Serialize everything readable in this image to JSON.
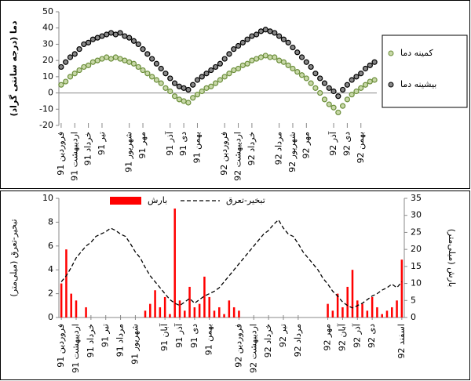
{
  "chart_data": [
    {
      "type": "scatter",
      "y_label": "دما (درجه سانتی گراد)",
      "legend": "right",
      "ylim": [
        -20,
        50
      ],
      "yticks": [
        -20,
        -10,
        0,
        10,
        20,
        30,
        40,
        50
      ],
      "categories": [
        "فروردین 91",
        null,
        null,
        "اردیبهشت 91",
        null,
        null,
        "خرداد 91",
        null,
        null,
        "تیر 91",
        null,
        null,
        null,
        null,
        null,
        "شهریور 91",
        null,
        null,
        "مهر 91",
        null,
        null,
        null,
        null,
        null,
        "آذر 91",
        null,
        null,
        "دی 91",
        null,
        null,
        "بهمن 91",
        null,
        null,
        null,
        null,
        null,
        "فروردین 92",
        null,
        null,
        "اردیبهشت 92",
        null,
        null,
        "خرداد 92",
        null,
        null,
        null,
        null,
        null,
        "مرداد 92",
        null,
        null,
        "شهریور 92",
        null,
        null,
        "مهر 92",
        null,
        null,
        null,
        null,
        null,
        "آذر 92",
        null,
        null,
        "دی 92",
        null,
        null,
        "بهمن 92",
        null,
        null,
        null
      ],
      "series": [
        {
          "name": "کمینه دما",
          "color": "#6b8e3a",
          "values": [
            5,
            7,
            10,
            12,
            14,
            16,
            17,
            19,
            20,
            21,
            22,
            21,
            22,
            21,
            20,
            19,
            18,
            16,
            14,
            12,
            10,
            8,
            6,
            3,
            1,
            -2,
            -4,
            -5,
            -6,
            -3,
            -1,
            1,
            3,
            4,
            6,
            8,
            10,
            12,
            14,
            15,
            17,
            18,
            20,
            21,
            22,
            23,
            22,
            22,
            20,
            19,
            17,
            15,
            13,
            11,
            9,
            6,
            3,
            0,
            -4,
            -7,
            -9,
            -12,
            -8,
            -4,
            -1,
            1,
            3,
            5,
            7,
            8
          ]
        },
        {
          "name": "بیشینه دما",
          "color": "#000000",
          "values": [
            16,
            19,
            22,
            24,
            27,
            30,
            31,
            33,
            34,
            35,
            36,
            37,
            36,
            37,
            35,
            34,
            32,
            30,
            27,
            24,
            21,
            18,
            15,
            12,
            9,
            6,
            4,
            3,
            2,
            5,
            8,
            10,
            12,
            14,
            16,
            18,
            21,
            24,
            27,
            29,
            31,
            33,
            35,
            36,
            38,
            39,
            38,
            37,
            35,
            33,
            31,
            28,
            25,
            22,
            19,
            16,
            12,
            9,
            6,
            3,
            1,
            -2,
            2,
            5,
            8,
            10,
            12,
            15,
            17,
            19
          ]
        }
      ]
    },
    {
      "type": "combo",
      "y_label": "تبخیر-تعرق (میلی‌متر)",
      "y2_label": "بارش (میلی‌متر)",
      "legend": "top",
      "ylim": [
        0,
        10
      ],
      "yticks": [
        0,
        2,
        4,
        6,
        8,
        10
      ],
      "y2lim": [
        0,
        35
      ],
      "y2ticks": [
        0,
        5,
        10,
        15,
        20,
        25,
        30,
        35
      ],
      "categories": [
        "فروردین 91",
        null,
        null,
        "اردیبهشت 91",
        null,
        null,
        "خرداد 91",
        null,
        null,
        "تیر 91",
        null,
        null,
        "مرداد 91",
        null,
        null,
        "شهریور 91",
        null,
        null,
        null,
        null,
        null,
        "آبان 91",
        null,
        null,
        "آذر 91",
        null,
        null,
        "دی 91",
        null,
        null,
        "بهمن 91",
        null,
        null,
        null,
        null,
        null,
        "فروردین 92",
        null,
        null,
        "اردیبهشت 92",
        null,
        null,
        "خرداد 92",
        null,
        null,
        "تیر 92",
        null,
        null,
        "مرداد 92",
        null,
        null,
        null,
        null,
        null,
        "مهر 92",
        null,
        null,
        "آبان 92",
        null,
        null,
        "آذر 92",
        null,
        null,
        "دی 92",
        null,
        null,
        null,
        null,
        null,
        "اسفند 92"
      ],
      "series": [
        {
          "name": "بارش",
          "color": "#ff0000",
          "axis": "y2",
          "values": [
            10,
            20,
            7,
            5,
            0,
            3,
            0,
            0,
            0,
            0,
            0,
            0,
            0,
            0,
            0,
            0,
            0,
            2,
            4,
            8,
            3,
            6,
            1,
            32,
            5,
            2,
            9,
            3,
            4,
            12,
            6,
            2,
            3,
            1,
            5,
            3,
            2,
            0,
            0,
            0,
            0,
            0,
            0,
            0,
            0,
            0,
            0,
            0,
            0,
            0,
            0,
            0,
            0,
            0,
            4,
            2,
            7,
            3,
            9,
            14,
            5,
            4,
            2,
            6,
            3,
            1,
            2,
            3,
            5,
            17
          ]
        },
        {
          "name": "تبخیر-تعرق",
          "color": "#000000",
          "values": [
            3,
            3.5,
            4.2,
            5,
            5.5,
            6,
            6.3,
            6.8,
            7,
            7.2,
            7.5,
            7.3,
            7,
            6.8,
            6.2,
            5.5,
            5,
            4.2,
            3.5,
            3,
            2.5,
            2,
            1.5,
            1.2,
            1,
            1.3,
            1.6,
            1.2,
            1.5,
            1.8,
            2,
            2.2,
            2.5,
            3,
            3.5,
            4,
            4.5,
            5,
            5.5,
            6,
            6.5,
            7,
            7.3,
            7.8,
            8.2,
            7.5,
            7,
            6.8,
            6.2,
            5.5,
            5,
            4.5,
            4,
            3.3,
            2.8,
            2.2,
            1.8,
            1.3,
            1,
            0.8,
            1,
            1.2,
            1.5,
            1.8,
            2,
            2.3,
            2.5,
            2.8,
            2.5,
            3
          ]
        }
      ]
    }
  ]
}
